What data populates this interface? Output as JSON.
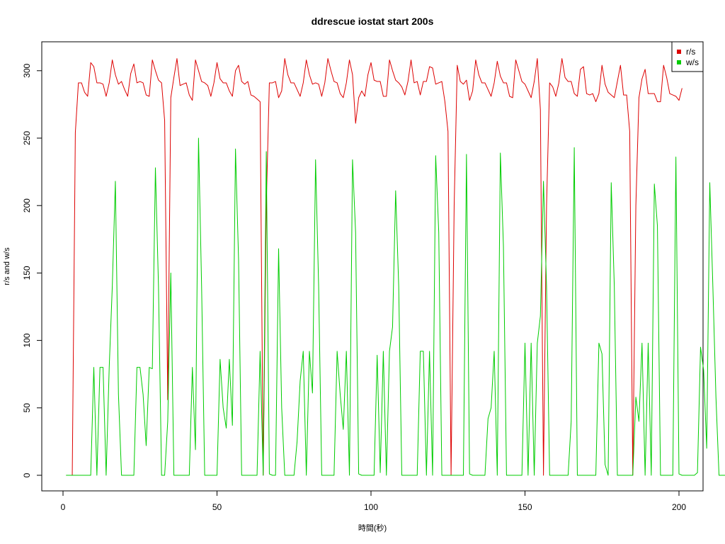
{
  "chart_data": {
    "type": "line",
    "title": "ddrescue iostat start 200s",
    "xlabel": "時間(秒)",
    "ylabel": "r/s and w/s",
    "xlim": [
      1,
      200
    ],
    "ylim": [
      0,
      310
    ],
    "x_ticks": [
      0,
      50,
      100,
      150,
      200
    ],
    "y_ticks": [
      0,
      50,
      100,
      150,
      200,
      250,
      300
    ],
    "grid": false,
    "legend_position": "top-right",
    "legend": [
      {
        "label": "r/s",
        "color": "#dd0000"
      },
      {
        "label": "w/s",
        "color": "#00cc00"
      }
    ],
    "x_start": 1,
    "series": [
      {
        "name": "r/s",
        "color": "#dd0000",
        "values": [
          0,
          0,
          0,
          254,
          291,
          291,
          284,
          281,
          306,
          303,
          291,
          291,
          290,
          281,
          291,
          308,
          297,
          290,
          292,
          286,
          281,
          298,
          305,
          291,
          292,
          291,
          282,
          281,
          308,
          300,
          293,
          291,
          263,
          56,
          280,
          295,
          309,
          289,
          290,
          291,
          282,
          278,
          308,
          300,
          292,
          291,
          289,
          281,
          291,
          306,
          294,
          291,
          291,
          285,
          281,
          300,
          304,
          292,
          290,
          292,
          282,
          281,
          279,
          277,
          0,
          200,
          291,
          291,
          292,
          280,
          285,
          309,
          297,
          291,
          291,
          286,
          281,
          291,
          308,
          297,
          290,
          291,
          290,
          281,
          291,
          309,
          300,
          292,
          291,
          283,
          280,
          291,
          308,
          297,
          261,
          280,
          285,
          281,
          297,
          306,
          293,
          292,
          292,
          281,
          281,
          308,
          300,
          293,
          291,
          288,
          282,
          292,
          308,
          291,
          292,
          282,
          292,
          292,
          303,
          302,
          290,
          291,
          292,
          277,
          255,
          0,
          200,
          304,
          292,
          290,
          293,
          278,
          285,
          308,
          297,
          291,
          291,
          286,
          281,
          291,
          307,
          296,
          291,
          291,
          281,
          280,
          308,
          300,
          292,
          290,
          285,
          280,
          292,
          309,
          271,
          0,
          200,
          291,
          288,
          281,
          291,
          309,
          295,
          292,
          292,
          283,
          281,
          301,
          303,
          283,
          282,
          283,
          277,
          283,
          304,
          290,
          284,
          282,
          280,
          292,
          304,
          282,
          282,
          255,
          0,
          200,
          280,
          294,
          301,
          283,
          283,
          283,
          277,
          277,
          304,
          295,
          283,
          282,
          281,
          278,
          287
        ]
      },
      {
        "name": "w/s",
        "color": "#00cc00",
        "values": [
          0,
          0,
          0,
          0,
          0,
          0,
          0,
          0,
          0,
          80,
          0,
          80,
          80,
          0,
          80,
          140,
          218,
          60,
          0,
          0,
          0,
          0,
          0,
          80,
          80,
          60,
          22,
          80,
          79,
          228,
          140,
          0,
          0,
          40,
          150,
          0,
          0,
          0,
          0,
          0,
          0,
          80,
          19,
          250,
          140,
          0,
          0,
          0,
          0,
          0,
          86,
          50,
          35,
          86,
          37,
          242,
          160,
          0,
          0,
          0,
          0,
          0,
          0,
          92,
          0,
          240,
          1,
          0,
          0,
          168,
          50,
          0,
          0,
          0,
          0,
          25,
          70,
          92,
          0,
          92,
          61,
          234,
          140,
          0,
          0,
          0,
          0,
          0,
          92,
          60,
          34,
          92,
          0,
          234,
          180,
          1,
          0,
          0,
          0,
          0,
          0,
          89,
          2,
          92,
          0,
          92,
          110,
          211,
          140,
          0,
          0,
          0,
          0,
          0,
          0,
          92,
          92,
          0,
          92,
          0,
          237,
          180,
          0,
          0,
          0,
          0,
          0,
          0,
          0,
          0,
          238,
          1,
          0,
          0,
          0,
          0,
          0,
          42,
          50,
          92,
          0,
          239,
          170,
          0,
          0,
          0,
          0,
          0,
          0,
          98,
          0,
          98,
          0,
          98,
          118,
          218,
          140,
          0,
          0,
          0,
          0,
          0,
          0,
          0,
          40,
          243,
          0,
          0,
          0,
          0,
          0,
          0,
          0,
          98,
          90,
          8,
          0,
          217,
          140,
          0,
          0,
          0,
          0,
          0,
          0,
          58,
          40,
          98,
          0,
          98,
          0,
          216,
          185,
          0,
          0,
          0,
          0,
          0,
          236,
          1,
          0,
          0,
          0,
          0,
          0,
          2,
          95,
          78,
          20,
          217,
          140,
          58,
          0,
          0,
          0,
          0,
          0
        ]
      }
    ]
  }
}
